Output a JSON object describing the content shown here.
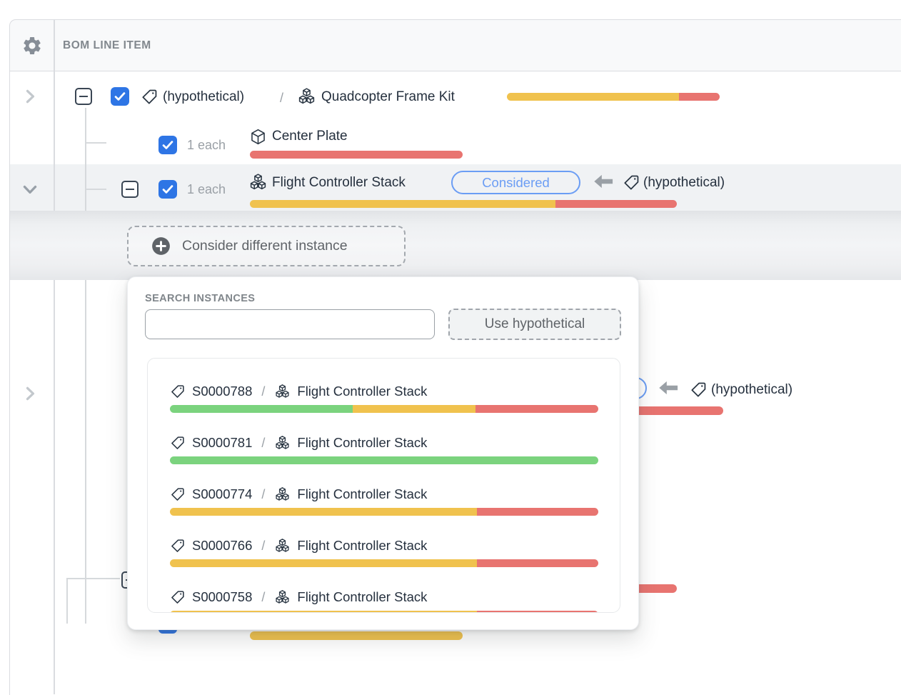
{
  "header": {
    "column_label": "BOM LINE ITEM"
  },
  "separator_label": "/",
  "tree": {
    "row1": {
      "tag_label": "(hypothetical)",
      "name": "Quadcopter Frame Kit"
    },
    "row2": {
      "qty": "1 each",
      "name": "Center Plate"
    },
    "row3": {
      "qty": "1 each",
      "name": "Flight Controller Stack",
      "badge": "Considered",
      "source_tag_label": "(hypothetical)"
    },
    "hidden_row": {
      "source_tag_label": "(hypothetical)"
    }
  },
  "consider_button": {
    "label": "Consider different instance"
  },
  "popover": {
    "search_label": "SEARCH INSTANCES",
    "search_value": "",
    "use_hypothetical_label": "Use hypothetical",
    "instances": [
      {
        "id": "S0000788",
        "name": "Flight Controller Stack"
      },
      {
        "id": "S0000781",
        "name": "Flight Controller Stack"
      },
      {
        "id": "S0000774",
        "name": "Flight Controller Stack"
      },
      {
        "id": "S0000766",
        "name": "Flight Controller Stack"
      },
      {
        "id": "S0000758",
        "name": "Flight Controller Stack"
      }
    ]
  },
  "colors": {
    "green": "#7BD37E",
    "yellow": "#F0C24E",
    "red": "#E87470",
    "checkbox_blue": "#2E75E5",
    "badge_blue": "#6B9DF4"
  },
  "bars": {
    "row1": [
      {
        "c": "yellow",
        "p": 81
      },
      {
        "c": "red",
        "p": 19
      }
    ],
    "row2": [
      {
        "c": "red",
        "p": 100
      }
    ],
    "row3": [
      {
        "c": "yellow",
        "p": 71.6
      },
      {
        "c": "red",
        "p": 28.4
      }
    ],
    "hidden_row_top": [
      {
        "c": "red",
        "p": 100
      }
    ],
    "hidden_row_mid": [
      {
        "c": "yellow",
        "p": 71.6
      },
      {
        "c": "red",
        "p": 28.4
      }
    ],
    "hidden_row_bottom": [
      {
        "c": "yellow",
        "p": 100
      }
    ],
    "instances": [
      [
        {
          "c": "green",
          "p": 42.6
        },
        {
          "c": "yellow",
          "p": 28.7
        },
        {
          "c": "red",
          "p": 28.7
        }
      ],
      [
        {
          "c": "green",
          "p": 100
        }
      ],
      [
        {
          "c": "yellow",
          "p": 71.6
        },
        {
          "c": "red",
          "p": 28.4
        }
      ],
      [
        {
          "c": "yellow",
          "p": 71.6
        },
        {
          "c": "red",
          "p": 28.4
        }
      ],
      [
        {
          "c": "yellow",
          "p": 71.6
        },
        {
          "c": "red",
          "p": 28.4
        }
      ]
    ]
  }
}
